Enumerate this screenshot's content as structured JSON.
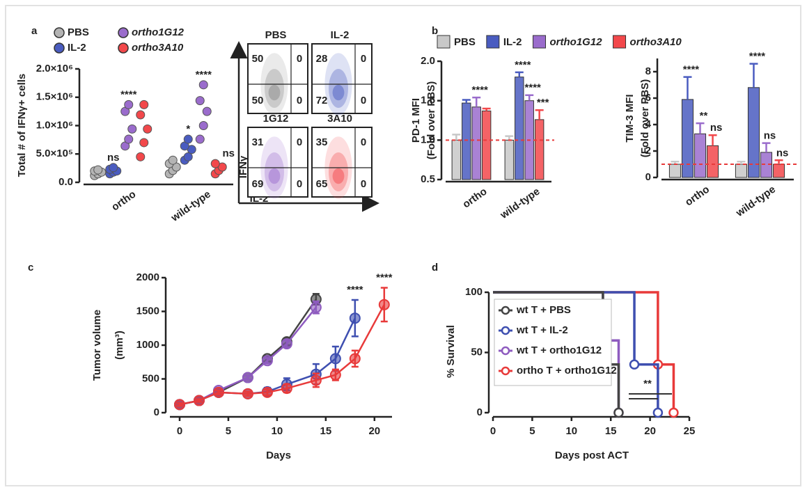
{
  "chart_data": [
    {
      "type": "dot",
      "panel": "a",
      "ylabel": "Total # of IFNγ+ cells",
      "categories": [
        "ortho",
        "wild-type"
      ],
      "ylim": [
        0,
        2000000
      ],
      "yticks": [
        {
          "value": 0,
          "label": "0.0"
        },
        {
          "value": 500000,
          "label": "5.0×10⁵"
        },
        {
          "value": 1000000,
          "label": "1.0×10⁶"
        },
        {
          "value": 1500000,
          "label": "1.5×10⁶"
        },
        {
          "value": 2000000,
          "label": "2.0×10⁶"
        }
      ],
      "series": [
        {
          "name": "PBS",
          "color": "#b4b4b4",
          "values": [
            [
              120000,
              150000,
              180000,
              200000,
              220000
            ],
            [
              150000,
              210000,
              270000,
              330000,
              390000
            ]
          ],
          "annotations": [
            null,
            null
          ]
        },
        {
          "name": "IL-2",
          "color": "#4a5cc0",
          "values": [
            [
              150000,
              180000,
              200000,
              230000,
              260000
            ],
            [
              390000,
              450000,
              580000,
              640000,
              760000
            ]
          ],
          "annotations": [
            "ns",
            "*"
          ]
        },
        {
          "name": "ortho1G12",
          "color": "#9a6ccc",
          "italic": true,
          "values": [
            [
              640000,
              760000,
              940000,
              1250000,
              1370000
            ],
            [
              760000,
              1000000,
              1250000,
              1440000,
              1720000
            ]
          ],
          "annotations": [
            "****",
            "****"
          ]
        },
        {
          "name": "ortho3A10",
          "color": "#f2484b",
          "italic": true,
          "values": [
            [
              450000,
              700000,
              940000,
              1190000,
              1370000
            ],
            [
              150000,
              210000,
              270000,
              330000
            ]
          ],
          "annotations": [
            null,
            "ns"
          ]
        }
      ]
    },
    {
      "type": "flow",
      "xlabel": "IL-2",
      "ylabel": "IFNγ",
      "plots": [
        {
          "name": "PBS",
          "color": "#888888",
          "quadrants": [
            50,
            0,
            50,
            0
          ]
        },
        {
          "name": "IL-2",
          "color": "#4a5cc0",
          "quadrants": [
            28,
            0,
            72,
            0
          ]
        },
        {
          "name": "1G12",
          "color": "#9a6ccc",
          "quadrants": [
            31,
            0,
            69,
            0
          ]
        },
        {
          "name": "3A10",
          "color": "#f2484b",
          "quadrants": [
            35,
            0,
            65,
            0
          ]
        }
      ]
    },
    {
      "type": "bar",
      "panel": "b",
      "legend": true,
      "ylabel": [
        "PD-1 MFI",
        "(Fold over PBS)"
      ],
      "categories": [
        "ortho",
        "wild-type"
      ],
      "ylim": [
        0.5,
        2.0
      ],
      "yticks": [
        0.5,
        {
          "value": 1,
          "label": "1.0"
        },
        1.5,
        {
          "value": 2,
          "label": "2.0"
        }
      ],
      "reference_line": 1,
      "series": [
        {
          "name": "PBS",
          "color": "#c8c8c8",
          "values": [
            1.0,
            1.0
          ],
          "errors": [
            0.07,
            0.05
          ],
          "annotations": [
            null,
            null
          ]
        },
        {
          "name": "IL-2",
          "color": "#4a5cc0",
          "values": [
            1.47,
            1.8
          ],
          "errors": [
            0.04,
            0.06
          ],
          "annotations": [
            null,
            "****"
          ]
        },
        {
          "name": "ortho1G12",
          "color": "#9a6ccc",
          "italic": true,
          "values": [
            1.42,
            1.5
          ],
          "errors": [
            0.12,
            0.07
          ],
          "annotations": [
            "****",
            "****"
          ]
        },
        {
          "name": "ortho3A10",
          "color": "#f2484b",
          "italic": true,
          "values": [
            1.37,
            1.26
          ],
          "errors": [
            0.03,
            0.12
          ],
          "annotations": [
            null,
            "***"
          ]
        }
      ]
    },
    {
      "type": "bar",
      "ylabel": [
        "TIM-3 MFI",
        "(Fold over PBS)"
      ],
      "categories": [
        "ortho",
        "wild-type"
      ],
      "ylim": [
        0,
        9
      ],
      "yticks": [
        0,
        2,
        4,
        6,
        8
      ],
      "reference_line": 1,
      "series": [
        {
          "color": "#c8c8c8",
          "values": [
            1.0,
            1.0
          ],
          "errors": [
            0.2,
            0.2
          ],
          "annotations": [
            null,
            null
          ]
        },
        {
          "color": "#4a5cc0",
          "values": [
            5.9,
            6.8
          ],
          "errors": [
            1.7,
            1.8
          ],
          "annotations": [
            "****",
            "****"
          ]
        },
        {
          "color": "#9a6ccc",
          "values": [
            3.3,
            1.9
          ],
          "errors": [
            0.8,
            0.7
          ],
          "annotations": [
            "**",
            "ns"
          ]
        },
        {
          "color": "#f2484b",
          "values": [
            2.4,
            1.0
          ],
          "errors": [
            0.8,
            0.3
          ],
          "annotations": [
            "ns",
            "ns"
          ]
        }
      ]
    },
    {
      "type": "line",
      "panel": "c",
      "xlabel": "Days",
      "ylabel": [
        "Tumor volume",
        "(mm³)"
      ],
      "xlim": [
        -1,
        21.8
      ],
      "ylim": [
        0,
        2000
      ],
      "xticks": [
        0,
        5,
        10,
        15,
        20
      ],
      "yticks": [
        0,
        500,
        1000,
        1500,
        2000
      ],
      "series": [
        {
          "color": "#444444",
          "x": [
            0,
            2,
            4,
            7,
            9,
            11,
            14
          ],
          "values": [
            120,
            180,
            300,
            520,
            800,
            1050,
            1680
          ],
          "errors": [
            20,
            20,
            30,
            30,
            40,
            50,
            80
          ],
          "annotations": [
            null,
            null,
            null,
            null,
            null,
            null,
            null
          ]
        },
        {
          "color": "#8e5bbf",
          "x": [
            0,
            2,
            4,
            7,
            9,
            11,
            14
          ],
          "values": [
            120,
            180,
            330,
            520,
            770,
            1020,
            1560
          ],
          "errors": [
            20,
            20,
            30,
            30,
            40,
            50,
            90
          ],
          "annotations": [
            null,
            null,
            null,
            null,
            null,
            null,
            null
          ]
        },
        {
          "color": "#3e4fb0",
          "x": [
            0,
            2,
            4,
            7,
            9,
            11,
            14,
            16,
            18
          ],
          "values": [
            120,
            180,
            300,
            280,
            310,
            420,
            570,
            800,
            1400
          ],
          "errors": [
            20,
            20,
            30,
            30,
            60,
            90,
            150,
            180,
            270
          ],
          "annotations": [
            null,
            null,
            null,
            null,
            null,
            null,
            null,
            null,
            "****"
          ]
        },
        {
          "color": "#e83a3a",
          "x": [
            0,
            2,
            4,
            7,
            9,
            11,
            14,
            16,
            18,
            21
          ],
          "values": [
            120,
            180,
            300,
            280,
            300,
            360,
            480,
            560,
            800,
            1600
          ],
          "errors": [
            20,
            20,
            30,
            30,
            40,
            60,
            100,
            80,
            120,
            250
          ],
          "annotations": [
            null,
            null,
            null,
            null,
            null,
            null,
            null,
            null,
            null,
            "****"
          ]
        }
      ]
    },
    {
      "type": "step",
      "panel": "d",
      "xlabel": "Days post  ACT",
      "ylabel": "% Survival",
      "xlim": [
        0,
        25
      ],
      "ylim": [
        0,
        100
      ],
      "xticks": [
        0,
        5,
        10,
        15,
        20,
        25
      ],
      "yticks": [
        0,
        50,
        100
      ],
      "annotations": [
        "**"
      ],
      "series": [
        {
          "name": "wt T + PBS",
          "color": "#444444",
          "x": [
            0,
            14,
            16
          ],
          "values": [
            100,
            40,
            0
          ]
        },
        {
          "name": "wt T + IL-2",
          "color": "#3e4fb0",
          "x": [
            0,
            18,
            21
          ],
          "values": [
            100,
            40,
            0
          ]
        },
        {
          "name": "wt T + ortho1G12",
          "color": "#8e5bbf",
          "x": [
            0,
            14,
            16
          ],
          "values": [
            100,
            60,
            0
          ]
        },
        {
          "name": "ortho T + ortho1G12",
          "color": "#e83a3a",
          "x": [
            0,
            21,
            23
          ],
          "values": [
            100,
            40,
            0
          ]
        }
      ]
    }
  ]
}
